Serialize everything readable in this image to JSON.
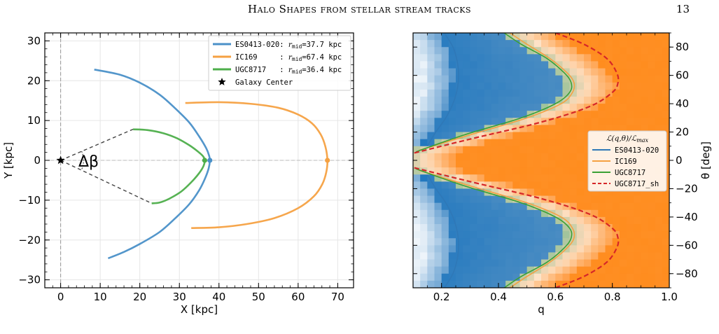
{
  "header": {
    "running_title": "Halo Shapes from stellar stream tracks",
    "page_number": "13"
  },
  "colors": {
    "blue": "#4a90c8",
    "orange": "#f5a142",
    "green": "#4dae4a",
    "red_dashed": "#d62728",
    "heat_orange": "#ff8c1a",
    "heat_blue": "#2f7fc0",
    "grid": "#e6e6e6"
  },
  "chart_data": [
    {
      "type": "line",
      "xlabel": "X [kpc]",
      "ylabel": "Y [kpc]",
      "xlim": [
        -4,
        74
      ],
      "ylim": [
        -32,
        32
      ],
      "xticks": [
        0,
        10,
        20,
        30,
        40,
        50,
        60,
        70
      ],
      "yticks": [
        -30,
        -20,
        -10,
        0,
        10,
        20,
        30
      ],
      "grid": true,
      "legend_placement": "top-right",
      "annotation": "Δβ",
      "series": [
        {
          "name": "ES0413-020",
          "legend_label": "ES0413-020: ",
          "legend_suffix": "=37.7 kpc",
          "color": "#4a90c8",
          "x": [
            8.5,
            15,
            20,
            25,
            29,
            32.5,
            35,
            36.8,
            37.5,
            37.7,
            37.4,
            36.5,
            35,
            32.5,
            29,
            25,
            20,
            16,
            12
          ],
          "y": [
            22.8,
            21.5,
            19.5,
            16.5,
            13,
            9.5,
            6,
            3,
            1.2,
            0,
            -2,
            -4.5,
            -7.5,
            -11,
            -14.5,
            -18,
            -21,
            -23,
            -24.6
          ]
        },
        {
          "name": "IC169",
          "legend_label": "IC169     : ",
          "legend_suffix": "=67.4 kpc",
          "color": "#f5a142",
          "x": [
            31.5,
            40,
            48,
            55,
            60,
            63.5,
            65.7,
            66.9,
            67.4,
            67.1,
            66.1,
            64,
            60,
            54,
            47,
            40,
            33
          ],
          "y": [
            14.4,
            14.6,
            14.2,
            13.2,
            11.5,
            9.3,
            6.5,
            3.4,
            0,
            -3,
            -6,
            -9,
            -12,
            -14.5,
            -16,
            -16.8,
            -17
          ]
        },
        {
          "name": "UGC8717",
          "legend_label": "UGC8717   : ",
          "legend_suffix": "=36.4 kpc",
          "color": "#4dae4a",
          "x": [
            18.3,
            22,
            26,
            29.5,
            32.5,
            34.7,
            36,
            36.4,
            36.1,
            35,
            33,
            30.5,
            27.5,
            25,
            23
          ],
          "y": [
            7.8,
            7.6,
            6.8,
            5.5,
            3.8,
            2.2,
            1,
            0,
            -1.4,
            -3.2,
            -5.5,
            -7.8,
            -9.6,
            -10.6,
            -10.8
          ]
        }
      ],
      "markers": [
        {
          "name": "Galaxy Center",
          "legend_label": "Galaxy Center",
          "x": 0,
          "y": 0,
          "shape": "star"
        },
        {
          "name": "ES0413-020 midpoint",
          "x": 37.7,
          "y": 0
        },
        {
          "name": "IC169 midpoint",
          "x": 67.4,
          "y": 0
        },
        {
          "name": "UGC8717 midpoint",
          "x": 36.4,
          "y": 0
        }
      ],
      "dashed_lines": [
        {
          "x1": 0,
          "y1": 0,
          "x2": 18.3,
          "y2": 7.8
        },
        {
          "x1": 0,
          "y1": 0,
          "x2": 23,
          "y2": -10.8
        }
      ]
    },
    {
      "type": "heatmap",
      "xlabel": "q",
      "ylabel": "θ [deg]",
      "xlim": [
        0.1,
        1.0
      ],
      "ylim": [
        -90,
        90
      ],
      "xticks": [
        "0.2",
        "0.4",
        "0.6",
        "0.8",
        "1.0"
      ],
      "yticks": [
        80,
        60,
        40,
        20,
        0,
        -20,
        -40,
        -60,
        -80
      ],
      "legend_title": "ℒ(q,θ)/ℒ",
      "legend_title_sub": "max",
      "legend_placement": "center-right",
      "colorscale": "white-blue-orange",
      "contours": [
        {
          "name": "ES0413-020",
          "color": "#2f78b7",
          "style": "solid",
          "q_boundary": [
            0.21,
            0.24,
            0.255,
            0.26,
            0.255,
            0.24,
            0.215,
            0.18,
            0.15
          ],
          "theta": [
            90,
            80,
            70,
            60,
            50,
            40,
            30,
            20,
            10
          ]
        },
        {
          "name": "IC169",
          "color": "#f5a142",
          "style": "solid",
          "q_boundary": [
            0.44,
            0.5,
            0.58,
            0.64,
            0.665,
            0.66,
            0.62,
            0.5,
            0.3,
            0.12
          ],
          "theta": [
            90,
            82,
            72,
            62,
            55,
            48,
            40,
            30,
            18,
            7
          ]
        },
        {
          "name": "UGC8717",
          "color": "#3aa035",
          "style": "solid",
          "q_boundary": [
            0.42,
            0.48,
            0.57,
            0.63,
            0.655,
            0.65,
            0.6,
            0.48,
            0.28,
            0.11
          ],
          "theta": [
            90,
            82,
            72,
            62,
            55,
            48,
            40,
            30,
            18,
            6
          ]
        },
        {
          "name": "UGC8717_sh",
          "color": "#d62728",
          "style": "dashed",
          "q_boundary": [
            0.6,
            0.7,
            0.78,
            0.815,
            0.82,
            0.8,
            0.72,
            0.55,
            0.3,
            0.1
          ],
          "theta": [
            90,
            82,
            72,
            62,
            55,
            48,
            38,
            27,
            15,
            5
          ]
        }
      ]
    }
  ]
}
